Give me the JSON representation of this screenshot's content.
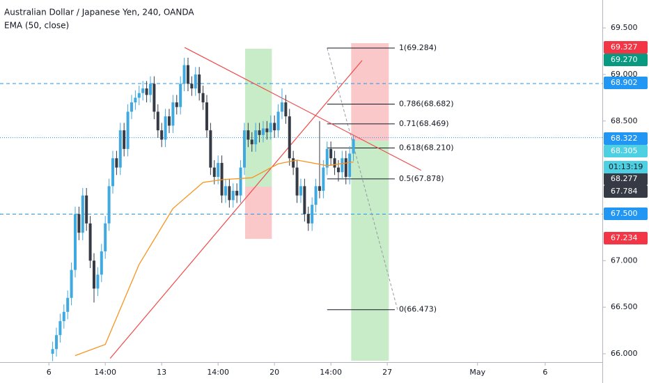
{
  "chart_data": {
    "type": "candlestick",
    "title": "Australian Dollar / Japanese Yen, 240, OANDA",
    "subtitle": "EMA (50, close)",
    "up_color": "#3fa9e0",
    "down_color": "#363a45",
    "xlim": [
      -13,
      147.2
    ],
    "ylim": [
      65.91,
      69.8
    ],
    "xticks": [
      {
        "value": 0,
        "label": "6"
      },
      {
        "value": 15,
        "label": "14:00"
      },
      {
        "value": 30,
        "label": "13"
      },
      {
        "value": 45,
        "label": "14:00"
      },
      {
        "value": 60,
        "label": "20"
      },
      {
        "value": 75,
        "label": "14:00"
      },
      {
        "value": 90,
        "label": "27"
      },
      {
        "value": 114,
        "label": "May"
      },
      {
        "value": 132,
        "label": "6"
      }
    ],
    "yticks": [
      {
        "value": 69.5,
        "label": "69.500"
      },
      {
        "value": 69.0,
        "label": "69.000"
      },
      {
        "value": 68.5,
        "label": "68.500"
      },
      {
        "value": 67.0,
        "label": "67.000"
      },
      {
        "value": 66.5,
        "label": "66.500"
      },
      {
        "value": 66.0,
        "label": "66.000"
      }
    ],
    "x": [
      1,
      2,
      3,
      4,
      5,
      6,
      7,
      8,
      9,
      10,
      11,
      12,
      13,
      14,
      15,
      16,
      17,
      18,
      19,
      20,
      21,
      22,
      23,
      24,
      25,
      26,
      27,
      28,
      29,
      30,
      31,
      32,
      33,
      34,
      35,
      36,
      37,
      38,
      39,
      40,
      41,
      42,
      43,
      44,
      45,
      46,
      47,
      48,
      49,
      50,
      51,
      52,
      53,
      54,
      55,
      56,
      57,
      58,
      59,
      60,
      61,
      62,
      63,
      64,
      65,
      66,
      67,
      68,
      69,
      70,
      71,
      72,
      73,
      74,
      75,
      76,
      77,
      78,
      79,
      80,
      81
    ],
    "open": [
      66.0,
      66.05,
      66.2,
      66.35,
      66.45,
      66.6,
      66.9,
      67.5,
      67.3,
      67.7,
      67.4,
      67.0,
      66.7,
      66.85,
      67.1,
      67.4,
      67.8,
      68.1,
      68.0,
      68.4,
      68.2,
      68.6,
      68.7,
      68.75,
      68.8,
      68.85,
      68.78,
      68.9,
      68.6,
      68.4,
      68.3,
      68.55,
      68.45,
      68.7,
      68.65,
      68.9,
      69.1,
      68.9,
      68.85,
      69.0,
      68.8,
      68.7,
      68.4,
      68.0,
      67.9,
      68.05,
      67.7,
      67.8,
      67.65,
      67.75,
      67.7,
      68.0,
      68.4,
      68.3,
      68.25,
      68.4,
      68.35,
      68.42,
      68.38,
      68.48,
      68.4,
      68.6,
      68.7,
      68.55,
      68.1,
      68.0,
      67.7,
      67.8,
      67.5,
      67.4,
      67.6,
      67.8,
      67.75,
      68.0,
      68.2,
      68.1,
      68.0,
      67.95,
      68.1,
      67.9,
      68.15
    ],
    "high": [
      66.13,
      66.28,
      66.43,
      66.53,
      66.68,
      66.98,
      67.58,
      67.58,
      67.78,
      67.78,
      67.48,
      67.08,
      66.93,
      67.18,
      67.48,
      67.88,
      68.18,
      68.18,
      68.48,
      68.48,
      68.68,
      68.78,
      68.83,
      68.88,
      68.93,
      68.93,
      68.98,
      68.98,
      68.68,
      68.48,
      68.63,
      68.63,
      68.78,
      68.78,
      68.98,
      69.18,
      69.18,
      68.98,
      69.08,
      69.08,
      68.88,
      68.78,
      68.48,
      68.08,
      68.13,
      68.13,
      67.88,
      67.88,
      67.83,
      67.83,
      68.08,
      68.48,
      68.48,
      68.38,
      68.48,
      68.48,
      68.5,
      68.5,
      68.56,
      68.56,
      68.68,
      68.85,
      68.78,
      68.63,
      68.18,
      68.08,
      67.88,
      67.88,
      67.58,
      67.68,
      67.88,
      68.5,
      68.08,
      68.28,
      68.28,
      68.18,
      68.08,
      68.18,
      68.18,
      68.23,
      68.35
    ],
    "low": [
      65.92,
      65.97,
      66.12,
      66.27,
      66.37,
      66.52,
      66.82,
      67.22,
      67.22,
      67.32,
      66.92,
      66.55,
      66.62,
      66.77,
      67.02,
      67.32,
      67.72,
      67.92,
      67.92,
      68.12,
      68.12,
      68.52,
      68.62,
      68.67,
      68.72,
      68.7,
      68.7,
      68.52,
      68.32,
      68.22,
      68.22,
      68.37,
      68.37,
      68.57,
      68.57,
      68.82,
      68.82,
      68.77,
      68.77,
      68.72,
      68.62,
      68.32,
      67.92,
      67.82,
      67.82,
      67.62,
      67.62,
      67.57,
      67.57,
      67.62,
      67.62,
      67.92,
      68.22,
      68.17,
      68.17,
      68.27,
      68.27,
      68.3,
      68.3,
      68.32,
      68.32,
      68.52,
      68.47,
      68.02,
      67.92,
      67.62,
      67.62,
      67.42,
      67.32,
      67.32,
      67.52,
      67.67,
      67.67,
      67.92,
      68.02,
      67.92,
      67.85,
      67.87,
      67.82,
      67.82,
      68.07
    ],
    "close": [
      66.05,
      66.2,
      66.35,
      66.45,
      66.6,
      66.9,
      67.5,
      67.3,
      67.7,
      67.4,
      67.0,
      66.7,
      66.85,
      67.1,
      67.4,
      67.8,
      68.1,
      68.0,
      68.4,
      68.2,
      68.6,
      68.7,
      68.75,
      68.8,
      68.85,
      68.78,
      68.9,
      68.6,
      68.4,
      68.3,
      68.55,
      68.45,
      68.7,
      68.65,
      68.9,
      69.1,
      68.9,
      68.85,
      69.0,
      68.8,
      68.7,
      68.4,
      68.0,
      67.9,
      68.05,
      67.7,
      67.8,
      67.65,
      67.75,
      67.7,
      68.0,
      68.4,
      68.3,
      68.25,
      68.4,
      68.35,
      68.42,
      68.38,
      68.48,
      68.4,
      68.6,
      68.7,
      68.55,
      68.1,
      68.0,
      67.7,
      67.8,
      67.5,
      67.4,
      67.6,
      67.8,
      67.75,
      68.0,
      68.2,
      68.1,
      68.0,
      67.95,
      68.1,
      67.9,
      68.15,
      68.305
    ],
    "ema": {
      "color": "#f7931e",
      "x": [
        7,
        15,
        24,
        33,
        41,
        46,
        54,
        61,
        66,
        74,
        81
      ],
      "values": [
        65.98,
        66.1,
        66.96,
        67.56,
        67.84,
        67.87,
        67.89,
        68.04,
        68.08,
        68.02,
        68.06
      ]
    },
    "trendlines": [
      {
        "color": "#f04a4a",
        "x": [
          36.1,
          99
        ],
        "values": [
          69.29,
          67.97
        ]
      },
      {
        "color": "#f04a4a",
        "x": [
          16.3,
          83.3
        ],
        "values": [
          65.95,
          69.15
        ]
      }
    ],
    "hlines": [
      {
        "value": 68.902,
        "color": "#2196f3"
      },
      {
        "value": 67.5,
        "color": "#2196f3"
      }
    ],
    "price_line": 68.322,
    "positions": [
      {
        "x": [
          52.2,
          59.3
        ],
        "top": 69.276,
        "entry": 67.795,
        "bottom": 67.234,
        "top_color": "#c8ebc8",
        "bottom_color": "#fac8c8"
      },
      {
        "x": [
          80.4,
          90.4
        ],
        "top": 69.336,
        "entry": 68.288,
        "bottom": 65.925,
        "top_color": "#fac8c8",
        "bottom_color": "#c8ebc8"
      }
    ],
    "fib": {
      "x": [
        74,
        92
      ],
      "levels": [
        {
          "value": 69.284,
          "label": "1(69.284)"
        },
        {
          "value": 68.682,
          "label": "0.786(68.682)"
        },
        {
          "value": 68.469,
          "label": "0.71(68.469)"
        },
        {
          "value": 68.21,
          "label": "0.618(68.210)"
        },
        {
          "value": 67.878,
          "label": "0.5(67.878)"
        },
        {
          "value": 66.473,
          "label": "0(66.473)"
        }
      ]
    },
    "price_tags": [
      {
        "value": 69.327,
        "label": "69.327",
        "color": "#f23645"
      },
      {
        "value": 69.27,
        "label": "69.270",
        "color": "#089981"
      },
      {
        "value": 68.902,
        "label": "68.902",
        "color": "#2196f3"
      },
      {
        "value": 68.322,
        "label": "68.322",
        "color": "#2196f3"
      },
      {
        "value": 68.305,
        "label": "68.305",
        "color": "#4dd0e1"
      },
      {
        "value": 68.277,
        "label": "68.277",
        "color": "#363a45"
      },
      {
        "value": 67.784,
        "label": "67.784",
        "color": "#363a45"
      },
      {
        "value": 67.5,
        "label": "67.500",
        "color": "#2196f3"
      },
      {
        "value": 67.234,
        "label": "67.234",
        "color": "#f23645"
      }
    ],
    "countdown": "01:13:19"
  }
}
